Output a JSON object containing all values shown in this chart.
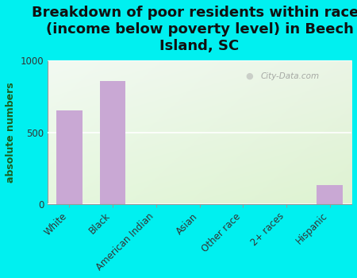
{
  "title": "Breakdown of poor residents within races\n(income below poverty level) in Beech\nIsland, SC",
  "categories": [
    "White",
    "Black",
    "American Indian",
    "Asian",
    "Other race",
    "2+ races",
    "Hispanic"
  ],
  "values": [
    650,
    860,
    0,
    0,
    0,
    0,
    130
  ],
  "bar_color": "#c9a8d4",
  "ylabel": "absolute numbers",
  "ylim": [
    0,
    1000
  ],
  "yticks": [
    0,
    500,
    1000
  ],
  "background_color": "#00f0f0",
  "title_fontsize": 13,
  "axis_label_fontsize": 9,
  "tick_fontsize": 8.5,
  "watermark": "City-Data.com"
}
